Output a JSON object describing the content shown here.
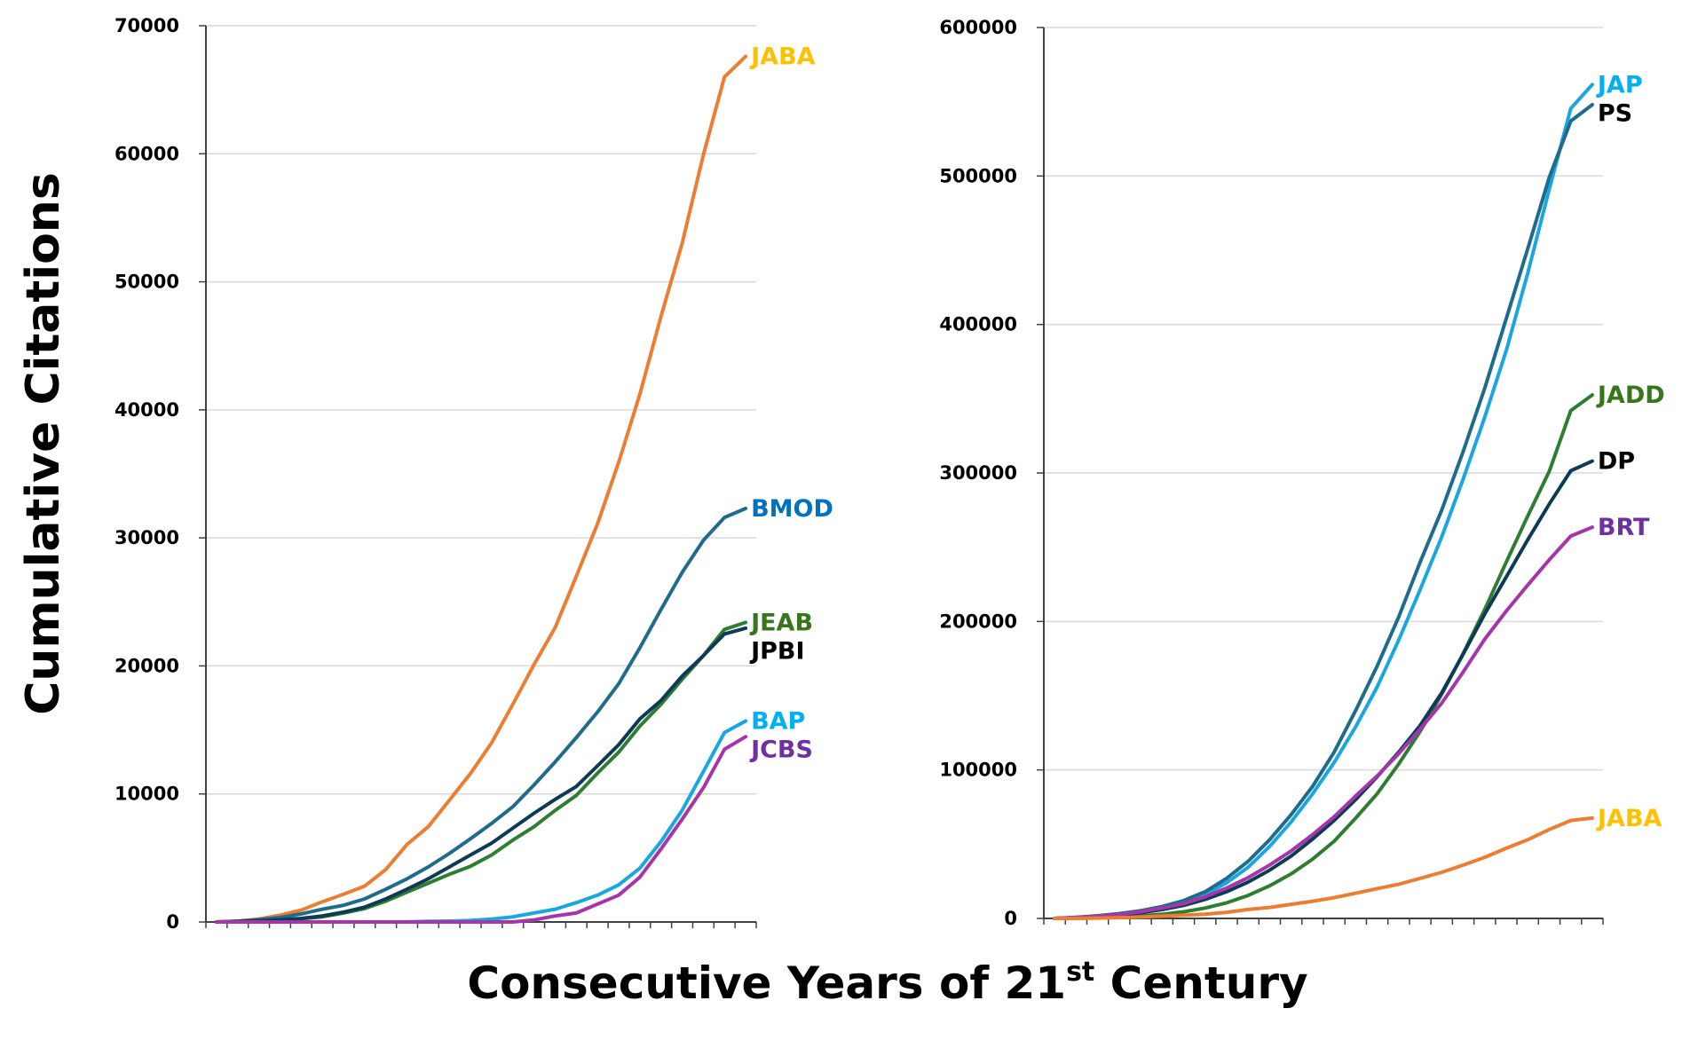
{
  "figure": {
    "ylabel": "Cumulative Citations",
    "xlabel_main": "Consecutive Years of 21",
    "xlabel_sup": "st",
    "xlabel_end": " Century"
  },
  "chart_data": [
    {
      "type": "line",
      "title": "",
      "xlabel": "Consecutive Years of 21st Century",
      "ylabel": "Cumulative Citations",
      "ylim": [
        0,
        70000
      ],
      "yticks": [
        0,
        10000,
        20000,
        30000,
        40000,
        50000,
        60000,
        70000
      ],
      "ytick_labels": [
        "0",
        "10000",
        "20000",
        "30000",
        "40000",
        "50000",
        "60000",
        "70000"
      ],
      "n_categories": 26,
      "x": [
        1,
        2,
        3,
        4,
        5,
        6,
        7,
        8,
        9,
        10,
        11,
        12,
        13,
        14,
        15,
        16,
        17,
        18,
        19,
        20,
        21,
        22,
        23,
        24,
        25,
        26
      ],
      "grid": "horizontal",
      "legend": "direct-labels-right",
      "series": [
        {
          "name": "JABA",
          "line_color": "#ED7D31",
          "label_color": "#FFC000",
          "values": [
            0,
            70,
            230,
            530,
            930,
            1580,
            2160,
            2800,
            4100,
            6050,
            7440,
            9500,
            11600,
            14000,
            17000,
            20100,
            23000,
            27000,
            31100,
            35900,
            41200,
            47300,
            53000,
            59900,
            66000,
            67600
          ]
        },
        {
          "name": "BMOD",
          "line_color": "#1F6B8C",
          "label_color": "#0070C0",
          "values": [
            0,
            50,
            180,
            350,
            630,
            1000,
            1300,
            1800,
            2560,
            3370,
            4300,
            5350,
            6500,
            7700,
            9000,
            10700,
            12500,
            14400,
            16400,
            18600,
            21400,
            24400,
            27300,
            29800,
            31600,
            32300
          ]
        },
        {
          "name": "JEAB",
          "line_color": "#2E7D32",
          "label_color": "#38761D",
          "values": [
            0,
            30,
            80,
            140,
            250,
            400,
            700,
            1050,
            1630,
            2330,
            3020,
            3720,
            4350,
            5230,
            6400,
            7440,
            8720,
            9880,
            11630,
            13260,
            15290,
            17000,
            18950,
            20800,
            22850,
            23400
          ]
        },
        {
          "name": "JPBI",
          "line_color": "#0D3B55",
          "label_color": "#000000",
          "values": [
            0,
            40,
            90,
            160,
            280,
            470,
            770,
            1160,
            1800,
            2560,
            3370,
            4300,
            5230,
            6160,
            7330,
            8490,
            9580,
            10580,
            12200,
            13840,
            15850,
            17300,
            19200,
            20800,
            22500,
            22950
          ]
        },
        {
          "name": "BAP",
          "line_color": "#1AA7E0",
          "label_color": "#00B0F0",
          "values": [
            0,
            0,
            0,
            0,
            0,
            0,
            0,
            0,
            0,
            10,
            50,
            70,
            120,
            230,
            400,
            700,
            1000,
            1510,
            2090,
            2900,
            4190,
            6280,
            8720,
            11740,
            14800,
            15700
          ]
        },
        {
          "name": "JCBS",
          "line_color": "#A535A8",
          "label_color": "#7030A0",
          "values": [
            0,
            0,
            0,
            0,
            0,
            0,
            0,
            0,
            0,
            0,
            0,
            0,
            0,
            0,
            0,
            160,
            470,
            700,
            1400,
            2090,
            3490,
            5700,
            8020,
            10470,
            13490,
            14470
          ]
        }
      ]
    },
    {
      "type": "line",
      "title": "",
      "xlabel": "Consecutive Years of 21st Century",
      "ylabel": "Cumulative Citations",
      "ylim": [
        0,
        600000
      ],
      "yticks": [
        0,
        100000,
        200000,
        300000,
        400000,
        500000,
        600000
      ],
      "ytick_labels": [
        "0",
        "100000",
        "200000",
        "300000",
        "400000",
        "500000",
        "600000"
      ],
      "n_categories": 26,
      "x": [
        1,
        2,
        3,
        4,
        5,
        6,
        7,
        8,
        9,
        10,
        11,
        12,
        13,
        14,
        15,
        16,
        17,
        18,
        19,
        20,
        21,
        22,
        23,
        24,
        25,
        26
      ],
      "grid": "horizontal",
      "legend": "direct-labels-right",
      "series": [
        {
          "name": "JAP",
          "line_color": "#1AA7E0",
          "label_color": "#00B0F0",
          "values": [
            0,
            600,
            1400,
            2600,
            4400,
            7000,
            10800,
            16000,
            24000,
            34500,
            48500,
            65000,
            84000,
            105000,
            129000,
            156000,
            187500,
            221500,
            257000,
            296000,
            337500,
            382500,
            434500,
            491000,
            545500,
            561500
          ]
        },
        {
          "name": "PS",
          "line_color": "#1F6B8C",
          "label_color": "#000000",
          "values": [
            0,
            800,
            1800,
            3200,
            5200,
            8000,
            12000,
            18000,
            27000,
            38500,
            53000,
            70000,
            89000,
            112000,
            140000,
            170000,
            203000,
            240000,
            275000,
            314500,
            357000,
            404000,
            451000,
            499000,
            537000,
            548000
          ]
        },
        {
          "name": "JADD",
          "line_color": "#2E7D32",
          "label_color": "#38761D",
          "values": [
            0,
            200,
            500,
            1000,
            1700,
            2800,
            4500,
            7000,
            10500,
            15500,
            22000,
            30000,
            40000,
            52000,
            67500,
            84000,
            104000,
            126000,
            151000,
            178500,
            208000,
            240000,
            271000,
            301000,
            342000,
            352500
          ]
        },
        {
          "name": "DP",
          "line_color": "#0D3B55",
          "label_color": "#000000",
          "values": [
            0,
            500,
            1200,
            2300,
            3800,
            6000,
            8800,
            12800,
            18000,
            24500,
            32500,
            42000,
            53500,
            66000,
            80000,
            95500,
            112000,
            130000,
            152000,
            178000,
            205000,
            230000,
            255000,
            279000,
            301500,
            308000
          ]
        },
        {
          "name": "BRT",
          "line_color": "#A535A8",
          "label_color": "#7030A0",
          "values": [
            0,
            600,
            1400,
            2700,
            4500,
            7000,
            10000,
            14500,
            20500,
            27500,
            36000,
            45500,
            56500,
            68500,
            82500,
            96000,
            111000,
            127500,
            145000,
            166000,
            188000,
            207000,
            224500,
            241500,
            257500,
            263500
          ]
        },
        {
          "name": "JABA",
          "line_color": "#ED7D31",
          "label_color": "#FFC000",
          "values": [
            0,
            70,
            230,
            530,
            930,
            1580,
            2160,
            2800,
            4100,
            6050,
            7440,
            9500,
            11600,
            14000,
            17000,
            20100,
            23000,
            27000,
            31100,
            35900,
            41200,
            47300,
            53000,
            59900,
            66000,
            67600
          ]
        }
      ]
    }
  ]
}
